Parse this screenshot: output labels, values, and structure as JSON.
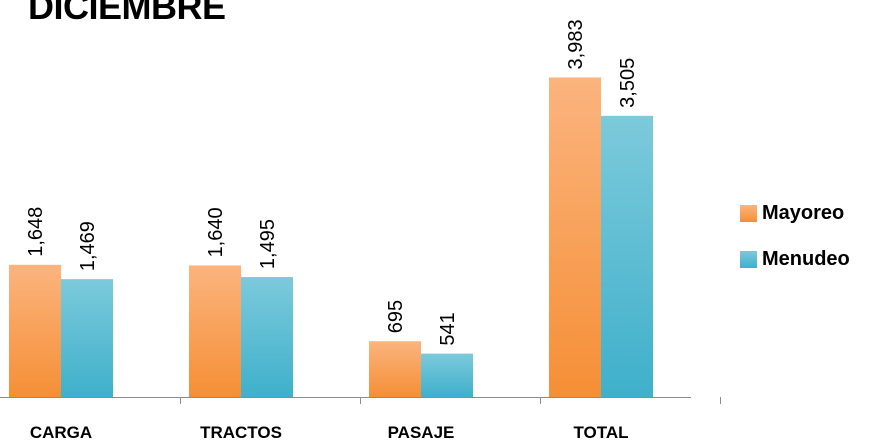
{
  "chart_data": {
    "type": "bar",
    "title": "DICIEMBRE",
    "categories": [
      "CARGA",
      "TRACTOS",
      "PASAJE",
      "TOTAL"
    ],
    "series": [
      {
        "name": "Mayoreo",
        "values": [
          1648,
          1640,
          695,
          3983
        ],
        "labels": [
          "1,648",
          "1,640",
          "695",
          "3,983"
        ],
        "color": "#f79646"
      },
      {
        "name": "Menudeo",
        "values": [
          1469,
          1495,
          541,
          3505
        ],
        "labels": [
          "1,469",
          "1,495",
          "541",
          "3,505"
        ],
        "color": "#4bacc6"
      }
    ],
    "ylim": [
      0,
      4500
    ],
    "legend_position": "right",
    "grid": false
  }
}
